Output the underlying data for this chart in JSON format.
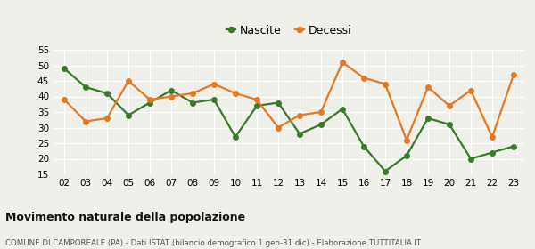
{
  "years": [
    "02",
    "03",
    "04",
    "05",
    "06",
    "07",
    "08",
    "09",
    "10",
    "11",
    "12",
    "13",
    "14",
    "15",
    "16",
    "17",
    "18",
    "19",
    "20",
    "21",
    "22",
    "23"
  ],
  "nascite": [
    49,
    43,
    41,
    34,
    38,
    42,
    38,
    39,
    27,
    37,
    38,
    28,
    31,
    36,
    24,
    16,
    21,
    33,
    31,
    20,
    22,
    24
  ],
  "decessi": [
    39,
    32,
    33,
    45,
    39,
    40,
    41,
    44,
    41,
    39,
    30,
    34,
    35,
    51,
    46,
    44,
    26,
    43,
    37,
    42,
    27,
    47
  ],
  "nascite_color": "#3a7a2a",
  "decessi_color": "#e87722",
  "background_color": "#f0f0eb",
  "grid_color": "#ffffff",
  "ylim": [
    15,
    55
  ],
  "yticks": [
    15,
    20,
    25,
    30,
    35,
    40,
    45,
    50,
    55
  ],
  "title": "Movimento naturale della popolazione",
  "subtitle": "COMUNE DI CAMPOREALE (PA) - Dati ISTAT (bilancio demografico 1 gen-31 dic) - Elaborazione TUTTITALIA.IT",
  "legend_nascite": "Nascite",
  "legend_decessi": "Decessi",
  "marker_size": 4,
  "line_width": 1.6
}
